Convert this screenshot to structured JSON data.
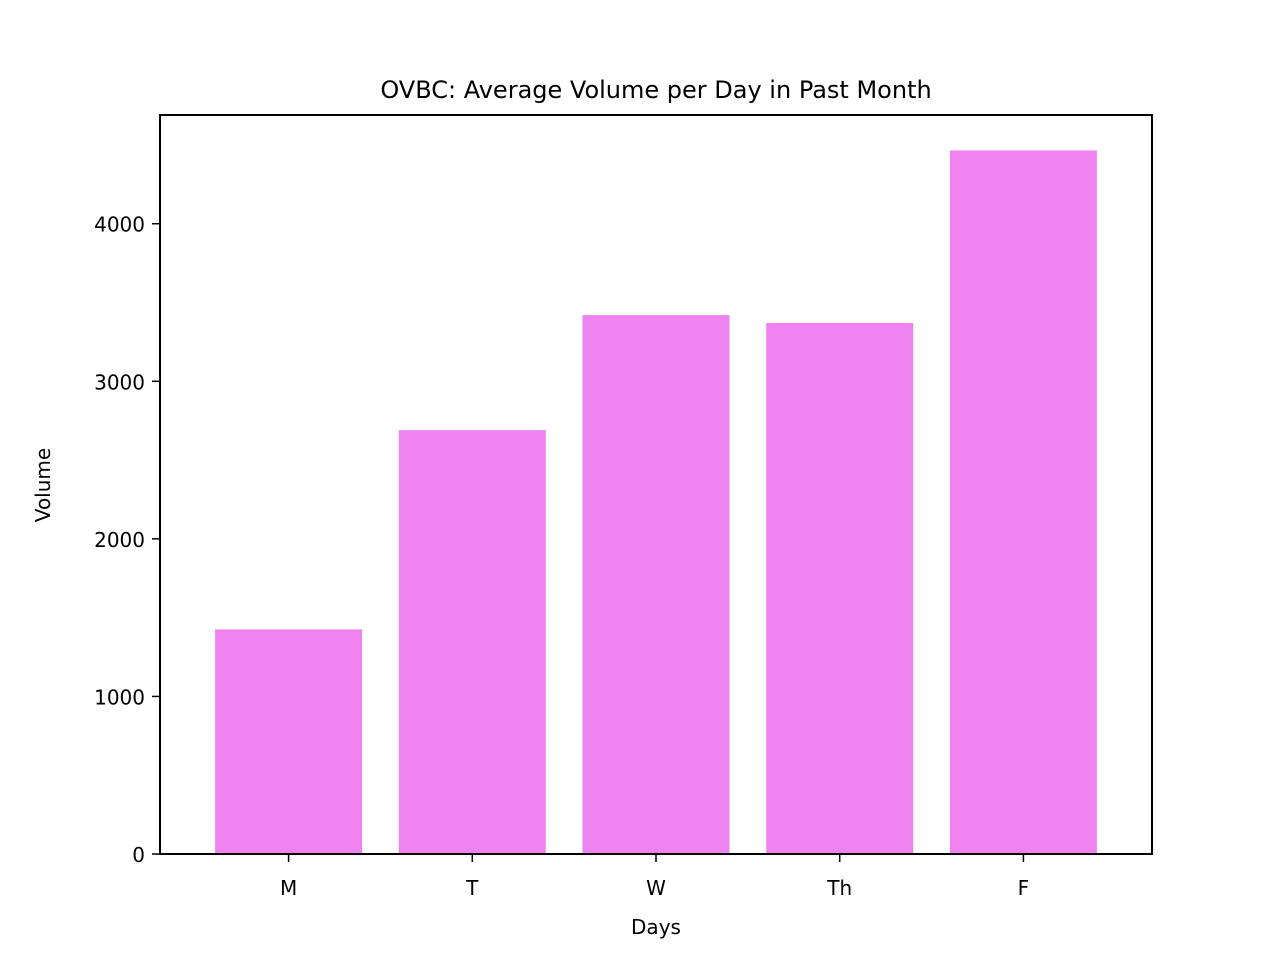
{
  "chart_data": {
    "type": "bar",
    "title": "OVBC: Average Volume per Day in Past Month",
    "xlabel": "Days",
    "ylabel": "Volume",
    "categories": [
      "M",
      "T",
      "W",
      "Th",
      "F"
    ],
    "values": [
      1425,
      2690,
      3420,
      3370,
      4465
    ],
    "ylim": [
      0,
      4690
    ],
    "yticks": [
      0,
      1000,
      2000,
      3000,
      4000
    ],
    "ytick_labels": [
      "0",
      "1000",
      "2000",
      "3000",
      "4000"
    ],
    "grid": false,
    "legend": "none",
    "bar_color": "#ee82ee"
  }
}
